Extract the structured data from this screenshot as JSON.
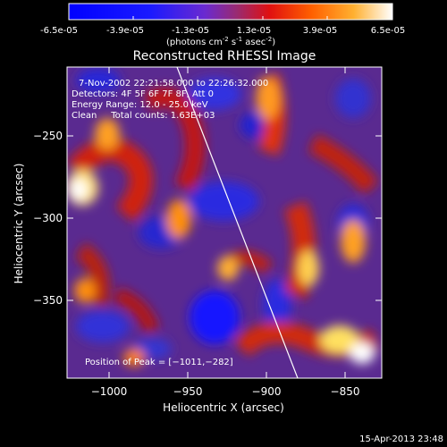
{
  "colorbar": {
    "ticks": [
      "-6.5e-05",
      "-3.9e-05",
      "-1.3e-05",
      "1.3e-05",
      "3.9e-05",
      "6.5e-05"
    ],
    "unit_main": "(photons cm",
    "unit_exp1": "-2",
    "unit_mid": " s",
    "unit_exp2": "-1",
    "unit_mid2": " asec",
    "unit_exp3": "-2",
    "unit_end": ")"
  },
  "plot": {
    "title": "Reconstructed RHESSI Image",
    "xlabel": "Heliocentric X (arcsec)",
    "ylabel": "Heliocentric Y (arcsec)",
    "xticks": [
      "−1000",
      "−950",
      "−900",
      "−850"
    ],
    "yticks": [
      "−250",
      "−300",
      "−350"
    ],
    "info": {
      "time": "7-Nov-2002 22:21:58.000 to 22:26:32.000",
      "detectors": "Detectors: 4F 5F 6F 7F 8F, Att 0",
      "energy": "Energy Range: 12.0 - 25.0 keV",
      "clean": "Clean     Total counts: 1.63E+03"
    },
    "peak": "Position of Peak = [−1011,−282]"
  },
  "timestamp": "15-Apr-2013 23:48"
}
